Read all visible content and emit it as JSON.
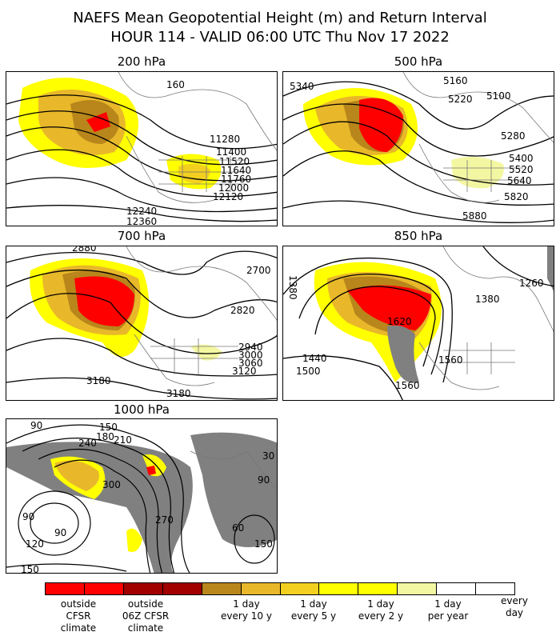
{
  "title": {
    "line1": "NAEFS Mean Geopotential Height (m) and Return Interval",
    "line2": "HOUR 114 - VALID 06:00 UTC Thu Nov 17 2022"
  },
  "panels": {
    "p200": {
      "title": "200 hPa",
      "labels": [
        "160",
        "11280",
        "11400",
        "11520",
        "11640",
        "11760",
        "12000",
        "12120",
        "12240",
        "12360"
      ]
    },
    "p500": {
      "title": "500 hPa",
      "labels": [
        "5340",
        "5160",
        "5220",
        "5100",
        "5280",
        "5400",
        "5520",
        "5640",
        "5820",
        "5880"
      ]
    },
    "p700": {
      "title": "700 hPa",
      "labels": [
        "2880",
        "2700",
        "2820",
        "2940",
        "3000",
        "3060",
        "3120",
        "3180",
        "3180"
      ]
    },
    "p850": {
      "title": "850 hPa",
      "labels": [
        "1380",
        "1260",
        "1380",
        "1620",
        "1440",
        "1500",
        "1560",
        "1560"
      ]
    },
    "p1000": {
      "title": "1000 hPa",
      "labels": [
        "90",
        "150",
        "180",
        "240",
        "210",
        "300",
        "270",
        "90",
        "120",
        "90",
        "150",
        "60",
        "150",
        "30",
        "90"
      ]
    }
  },
  "colorbar": {
    "colors": [
      "#ff0000",
      "#ff0000",
      "#a00000",
      "#a00000",
      "#b8861b",
      "#e8b82a",
      "#f3d01f",
      "#ffff00",
      "#ffff00",
      "#f4f7a2",
      "#ffffff",
      "#ffffff"
    ],
    "labels": [
      {
        "text": "outside\nCFSR\nclimate"
      },
      {
        "text": "outside\n06Z CFSR\nclimate"
      },
      {
        "text": "1 day\nevery 10 y"
      },
      {
        "text": "1 day\nevery 5 y"
      },
      {
        "text": "1 day\nevery 2 y"
      },
      {
        "text": "1 day\nper year"
      },
      {
        "text": "every\nday"
      }
    ]
  }
}
